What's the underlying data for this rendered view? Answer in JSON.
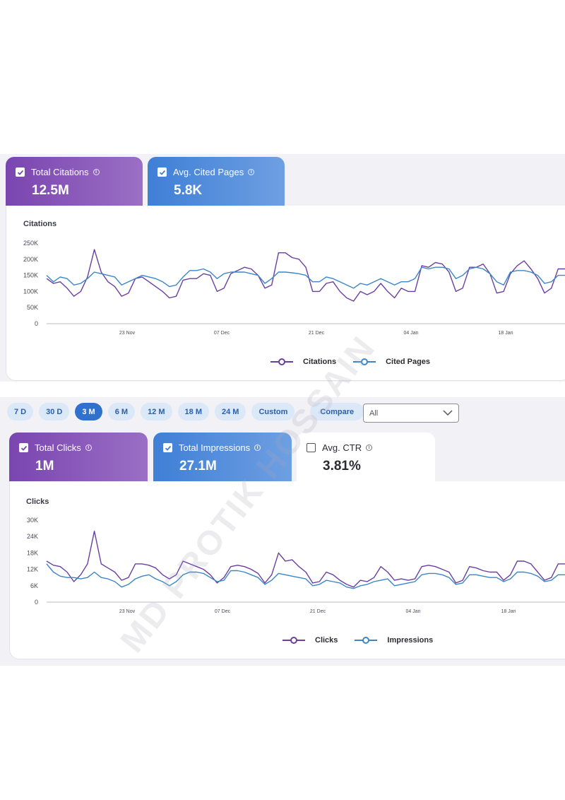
{
  "chart1": {
    "cards": [
      {
        "label": "Total Citations",
        "value": "12.5M",
        "checked": true
      },
      {
        "label": "Avg. Cited Pages",
        "value": "5.8K",
        "checked": true
      }
    ],
    "title": "Citations",
    "y_ticks": [
      "250K",
      "200K",
      "150K",
      "100K",
      "50K",
      "0"
    ],
    "x_ticks": [
      "23 Nov",
      "07 Dec",
      "21 Dec",
      "04 Jan",
      "18 Jan"
    ],
    "legend": [
      "Citations",
      "Cited Pages"
    ]
  },
  "controls": {
    "ranges": [
      "7 D",
      "30 D",
      "3 M",
      "6 M",
      "12 M",
      "18 M",
      "24 M",
      "Custom"
    ],
    "active_range": "3 M",
    "compare_label": "Compare",
    "select_value": "All"
  },
  "chart2": {
    "cards": [
      {
        "label": "Total Clicks",
        "value": "1M",
        "checked": true
      },
      {
        "label": "Total Impressions",
        "value": "27.1M",
        "checked": true
      },
      {
        "label": "Avg. CTR",
        "value": "3.81%",
        "checked": false
      }
    ],
    "title": "Clicks",
    "y_ticks": [
      "30K",
      "24K",
      "18K",
      "12K",
      "6K",
      "0"
    ],
    "x_ticks": [
      "23 Nov",
      "07 Dec",
      "21 Dec",
      "04 Jan",
      "18 Jan"
    ],
    "legend": [
      "Clicks",
      "Impressions"
    ]
  },
  "watermark": "MD PROTIK HOSSAIN",
  "colors": {
    "purple": "#6a3fa0",
    "blue": "#3a86c8"
  },
  "chart_data": [
    {
      "type": "line",
      "title": "Citations",
      "ylim": [
        0,
        250000
      ],
      "x_ticks": [
        "23 Nov",
        "07 Dec",
        "21 Dec",
        "04 Jan",
        "18 Jan"
      ],
      "series": [
        {
          "name": "Citations",
          "values": [
            140000,
            125000,
            130000,
            110000,
            85000,
            100000,
            145000,
            230000,
            160000,
            130000,
            115000,
            85000,
            95000,
            140000,
            145000,
            130000,
            115000,
            100000,
            80000,
            85000,
            135000,
            140000,
            140000,
            155000,
            150000,
            100000,
            110000,
            155000,
            165000,
            175000,
            170000,
            150000,
            110000,
            120000,
            220000,
            220000,
            205000,
            200000,
            175000,
            100000,
            100000,
            125000,
            130000,
            100000,
            80000,
            70000,
            100000,
            90000,
            100000,
            125000,
            100000,
            80000,
            110000,
            100000,
            100000,
            180000,
            175000,
            190000,
            185000,
            160000,
            100000,
            110000,
            175000,
            175000,
            185000,
            155000,
            95000,
            100000,
            155000,
            180000,
            195000,
            170000,
            140000,
            95000,
            110000,
            170000,
            170000
          ]
        },
        {
          "name": "Cited Pages",
          "values": [
            150000,
            130000,
            145000,
            140000,
            120000,
            125000,
            140000,
            160000,
            155000,
            150000,
            145000,
            120000,
            130000,
            140000,
            150000,
            145000,
            140000,
            130000,
            115000,
            120000,
            145000,
            165000,
            165000,
            170000,
            160000,
            140000,
            155000,
            160000,
            160000,
            160000,
            155000,
            150000,
            125000,
            140000,
            160000,
            160000,
            158000,
            155000,
            150000,
            130000,
            130000,
            145000,
            140000,
            130000,
            120000,
            110000,
            125000,
            120000,
            130000,
            140000,
            130000,
            120000,
            130000,
            130000,
            140000,
            175000,
            170000,
            175000,
            175000,
            170000,
            140000,
            150000,
            170000,
            175000,
            170000,
            155000,
            130000,
            120000,
            160000,
            165000,
            165000,
            160000,
            150000,
            125000,
            130000,
            150000,
            150000
          ]
        }
      ]
    },
    {
      "type": "line",
      "title": "Clicks",
      "ylim": [
        0,
        30000
      ],
      "x_ticks": [
        "23 Nov",
        "07 Dec",
        "21 Dec",
        "04 Jan",
        "18 Jan"
      ],
      "series": [
        {
          "name": "Clicks",
          "values": [
            15000,
            13500,
            13000,
            11000,
            7500,
            10000,
            14000,
            26000,
            14000,
            12500,
            11000,
            8000,
            9000,
            14000,
            14000,
            13500,
            12500,
            10000,
            8500,
            10000,
            15000,
            14000,
            13000,
            12000,
            10000,
            7000,
            9000,
            13000,
            13500,
            13000,
            12000,
            10500,
            7000,
            10000,
            18000,
            15000,
            15500,
            13000,
            11000,
            7000,
            7500,
            11000,
            10000,
            8000,
            6500,
            5500,
            8000,
            7500,
            9000,
            13000,
            11000,
            8000,
            8500,
            8000,
            8500,
            13000,
            13500,
            13000,
            12000,
            11000,
            7000,
            8000,
            13000,
            12500,
            11500,
            11000,
            11000,
            8000,
            10000,
            15000,
            15000,
            14000,
            11000,
            8000,
            9000,
            14000,
            14000
          ]
        },
        {
          "name": "Impressions",
          "values": [
            14000,
            11000,
            9500,
            9000,
            9000,
            8500,
            9000,
            11000,
            9000,
            8500,
            7500,
            5500,
            6500,
            8500,
            9500,
            10000,
            8500,
            7500,
            6000,
            7500,
            10000,
            11000,
            11000,
            10500,
            9000,
            7500,
            8000,
            11500,
            11500,
            11000,
            10000,
            9000,
            6500,
            8000,
            10500,
            10000,
            9500,
            9000,
            8500,
            6000,
            6500,
            8000,
            7500,
            7000,
            5500,
            5000,
            6000,
            6500,
            7500,
            8000,
            8500,
            6000,
            6500,
            7000,
            7500,
            10000,
            10500,
            10500,
            10000,
            9000,
            6500,
            7000,
            10000,
            10000,
            9500,
            9000,
            9000,
            7500,
            8500,
            11000,
            11000,
            10500,
            9500,
            7500,
            8000,
            10000,
            10000
          ]
        }
      ]
    }
  ]
}
